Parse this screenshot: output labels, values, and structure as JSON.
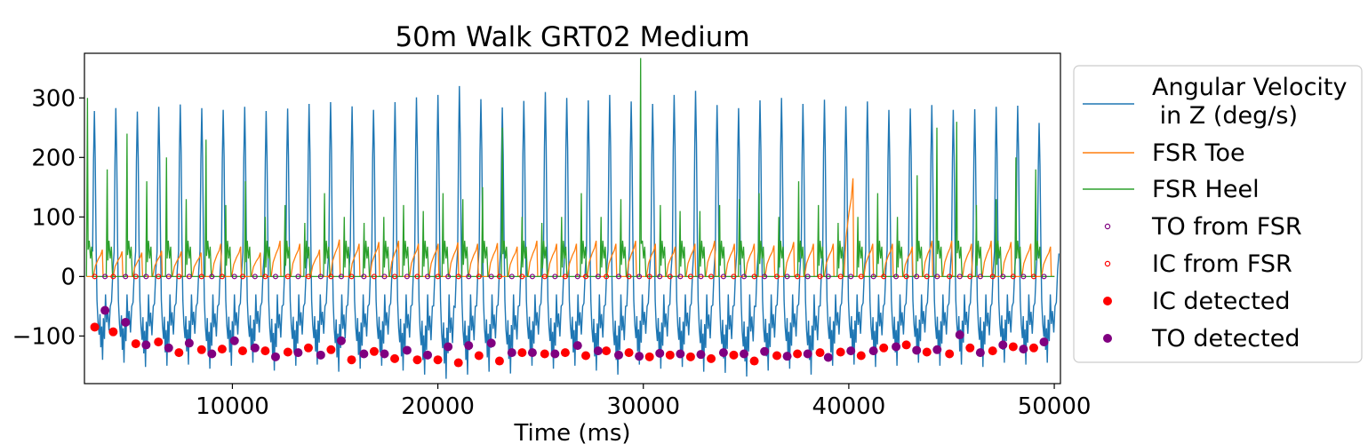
{
  "chart_data": {
    "type": "line",
    "title": "50m Walk GRT02 Medium",
    "xlabel": "Time (ms)",
    "ylabel": "",
    "xlim": [
      2800,
      50300
    ],
    "ylim": [
      -180,
      375
    ],
    "xticks": [
      10000,
      20000,
      30000,
      40000,
      50000
    ],
    "yticks": [
      -100,
      0,
      100,
      200,
      300
    ],
    "ytick_labels": [
      "−100",
      "0",
      "100",
      "200",
      "300"
    ],
    "grid": false,
    "legend_position": "outside-right",
    "series": [
      {
        "name": "Angular Velocity\n in Z (deg/s)",
        "kind": "line",
        "color": "#1f77b4"
      },
      {
        "name": "FSR Toe",
        "kind": "line",
        "color": "#ff7f0e"
      },
      {
        "name": "FSR Heel",
        "kind": "line",
        "color": "#2ca02c"
      },
      {
        "name": "TO from FSR",
        "kind": "hollow-marker",
        "color": "#800080",
        "y": 0
      },
      {
        "name": "IC from FSR",
        "kind": "hollow-marker",
        "color": "#ff0000",
        "y": 0
      },
      {
        "name": "IC detected",
        "kind": "filled-marker",
        "color": "#ff0000"
      },
      {
        "name": "TO detected",
        "kind": "filled-marker",
        "color": "#800080"
      }
    ],
    "gait": {
      "first_step_ms": 3200,
      "step_period_ms": 1045,
      "step_count": 45,
      "angular_velocity_peaks": [
        278,
        283,
        277,
        285,
        289,
        283,
        280,
        285,
        278,
        282,
        290,
        293,
        286,
        280,
        293,
        301,
        305,
        320,
        298,
        284,
        295,
        310,
        300,
        296,
        305,
        294,
        290,
        305,
        312,
        288,
        283,
        296,
        300,
        290,
        297,
        286,
        294,
        280,
        282,
        288,
        280,
        281,
        285,
        287,
        258
      ],
      "angular_velocity_troughs": [
        -140,
        -145,
        -152,
        -150,
        -148,
        -155,
        -150,
        -145,
        -158,
        -150,
        -148,
        -160,
        -155,
        -150,
        -158,
        -165,
        -172,
        -165,
        -160,
        -163,
        -150,
        -155,
        -150,
        -158,
        -165,
        -148,
        -155,
        -152,
        -160,
        -162,
        -168,
        -158,
        -155,
        -165,
        -150,
        -148,
        -152,
        -150,
        -145,
        -150,
        -148,
        -152,
        -145,
        -148,
        -145
      ],
      "fsr_heel_peaks": [
        300,
        180,
        240,
        160,
        200,
        130,
        230,
        120,
        160,
        100,
        120,
        90,
        140,
        100,
        90,
        100,
        120,
        110,
        140,
        130,
        150,
        250,
        100,
        90,
        100,
        140,
        100,
        130,
        367,
        120,
        110,
        110,
        120,
        130,
        140,
        100,
        160,
        120,
        90,
        100,
        140,
        100,
        170,
        250,
        260,
        120,
        130,
        200,
        180
      ],
      "fsr_toe_peaks": [
        45,
        42,
        40,
        43,
        42,
        40,
        55,
        50,
        40,
        60,
        55,
        45,
        62,
        55,
        58,
        60,
        55,
        55,
        57,
        55,
        56,
        50,
        60,
        55,
        55,
        60,
        55,
        60,
        55,
        50,
        55,
        60,
        55,
        55,
        52,
        58,
        55,
        55,
        165,
        55,
        55,
        50,
        60,
        60,
        55,
        60,
        58,
        55,
        50
      ],
      "ic_detected": [
        [
          3300,
          -85
        ],
        [
          4200,
          -93
        ],
        [
          5300,
          -113
        ],
        [
          6400,
          -110
        ],
        [
          7400,
          -128
        ],
        [
          8500,
          -123
        ],
        [
          9500,
          -122
        ],
        [
          10500,
          -125
        ],
        [
          11600,
          -125
        ],
        [
          12700,
          -127
        ],
        [
          13700,
          -120
        ],
        [
          14800,
          -123
        ],
        [
          15800,
          -140
        ],
        [
          16900,
          -126
        ],
        [
          17900,
          -138
        ],
        [
          19000,
          -140
        ],
        [
          20000,
          -140
        ],
        [
          21000,
          -145
        ],
        [
          22000,
          -133
        ],
        [
          23000,
          -142
        ],
        [
          24100,
          -128
        ],
        [
          25200,
          -130
        ],
        [
          26200,
          -128
        ],
        [
          27200,
          -133
        ],
        [
          28200,
          -125
        ],
        [
          29300,
          -128
        ],
        [
          30300,
          -135
        ],
        [
          31300,
          -132
        ],
        [
          32300,
          -135
        ],
        [
          33300,
          -138
        ],
        [
          34400,
          -132
        ],
        [
          35400,
          -142
        ],
        [
          36500,
          -133
        ],
        [
          37500,
          -130
        ],
        [
          38600,
          -128
        ],
        [
          39600,
          -127
        ],
        [
          40600,
          -133
        ],
        [
          41700,
          -120
        ],
        [
          42800,
          -115
        ],
        [
          43800,
          -127
        ],
        [
          44900,
          -130
        ],
        [
          45900,
          -120
        ],
        [
          47000,
          -125
        ],
        [
          48000,
          -118
        ],
        [
          49000,
          -120
        ]
      ],
      "to_detected": [
        [
          3800,
          -57
        ],
        [
          4800,
          -77
        ],
        [
          5800,
          -115
        ],
        [
          6900,
          -120
        ],
        [
          7900,
          -112
        ],
        [
          9000,
          -130
        ],
        [
          10100,
          -108
        ],
        [
          11100,
          -120
        ],
        [
          12100,
          -135
        ],
        [
          13200,
          -128
        ],
        [
          14300,
          -132
        ],
        [
          15300,
          -108
        ],
        [
          16400,
          -130
        ],
        [
          17400,
          -130
        ],
        [
          18500,
          -124
        ],
        [
          19500,
          -132
        ],
        [
          20500,
          -118
        ],
        [
          21500,
          -116
        ],
        [
          22600,
          -112
        ],
        [
          23600,
          -128
        ],
        [
          24600,
          -128
        ],
        [
          25700,
          -130
        ],
        [
          26800,
          -116
        ],
        [
          27800,
          -125
        ],
        [
          28800,
          -132
        ],
        [
          29800,
          -134
        ],
        [
          30800,
          -129
        ],
        [
          31800,
          -130
        ],
        [
          32800,
          -131
        ],
        [
          33900,
          -128
        ],
        [
          34900,
          -130
        ],
        [
          35900,
          -126
        ],
        [
          37000,
          -134
        ],
        [
          38000,
          -130
        ],
        [
          39000,
          -136
        ],
        [
          40100,
          -125
        ],
        [
          41200,
          -125
        ],
        [
          42300,
          -118
        ],
        [
          43300,
          -124
        ],
        [
          44300,
          -123
        ],
        [
          45400,
          -98
        ],
        [
          46400,
          -128
        ],
        [
          47500,
          -115
        ],
        [
          48500,
          -122
        ],
        [
          49500,
          -110
        ]
      ]
    }
  }
}
